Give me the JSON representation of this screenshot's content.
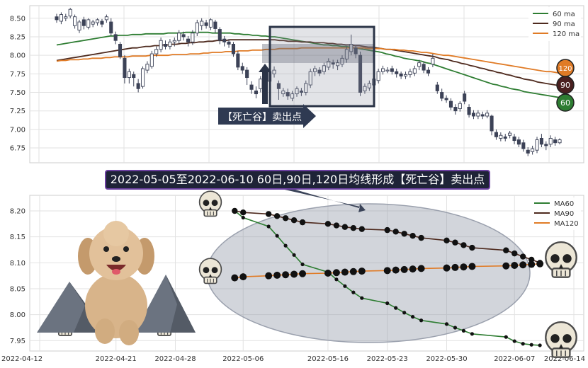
{
  "title": "2022-05-05至2022-06-10 60日,90日,120日均线形成【死亡谷】卖出点",
  "arrow_label": "【死亡谷】卖出点",
  "badges": [
    "120",
    "90",
    "60"
  ],
  "colors": {
    "ma60": "#2e7d32",
    "ma90": "#4e2a1e",
    "ma120": "#e07b26",
    "candle_up": "#ffffff",
    "candle_down": "#3c4257",
    "highlight": "#2b3447"
  },
  "chart_data": [
    {
      "type": "candlestick",
      "ylim": [
        6.55,
        8.67
      ],
      "yticks": [
        6.75,
        7.0,
        7.25,
        7.5,
        7.75,
        8.0,
        8.25,
        8.5
      ],
      "grid": true,
      "legend_position": "top-right",
      "legend": [
        "60 ma",
        "90 ma",
        "120 ma"
      ],
      "candles": [
        [
          8.52,
          8.48,
          8.56,
          8.44
        ],
        [
          8.46,
          8.55,
          8.58,
          8.42
        ],
        [
          8.5,
          8.52,
          8.56,
          8.46
        ],
        [
          8.53,
          8.62,
          8.64,
          8.5
        ],
        [
          8.4,
          8.52,
          8.55,
          8.36
        ],
        [
          8.34,
          8.45,
          8.48,
          8.3
        ],
        [
          8.48,
          8.4,
          8.52,
          8.35
        ],
        [
          8.38,
          8.48,
          8.5,
          8.35
        ],
        [
          8.42,
          8.45,
          8.48,
          8.38
        ],
        [
          8.44,
          8.48,
          8.5,
          8.4
        ],
        [
          8.46,
          8.42,
          8.49,
          8.38
        ],
        [
          8.48,
          8.52,
          8.55,
          8.44
        ],
        [
          8.45,
          8.3,
          8.5,
          8.26
        ],
        [
          8.28,
          8.2,
          8.32,
          8.15
        ],
        [
          8.15,
          7.98,
          8.18,
          7.95
        ],
        [
          7.96,
          7.7,
          8.0,
          7.62
        ],
        [
          7.7,
          7.78,
          7.82,
          7.62
        ],
        [
          7.74,
          7.7,
          7.78,
          7.58
        ],
        [
          7.62,
          7.55,
          7.68,
          7.5
        ],
        [
          7.58,
          7.82,
          7.85,
          7.55
        ],
        [
          7.8,
          7.88,
          7.92,
          7.76
        ],
        [
          7.85,
          8.02,
          8.06,
          7.82
        ],
        [
          8.02,
          8.08,
          8.12,
          7.98
        ],
        [
          8.08,
          8.2,
          8.24,
          8.04
        ],
        [
          8.15,
          8.12,
          8.2,
          8.08
        ],
        [
          8.12,
          8.18,
          8.22,
          8.08
        ],
        [
          8.18,
          8.2,
          8.24,
          8.12
        ],
        [
          8.2,
          8.3,
          8.34,
          8.16
        ],
        [
          8.28,
          8.25,
          8.32,
          8.2
        ],
        [
          8.22,
          8.18,
          8.26,
          8.12
        ],
        [
          8.18,
          8.3,
          8.34,
          8.14
        ],
        [
          8.3,
          8.44,
          8.48,
          8.26
        ],
        [
          8.4,
          8.46,
          8.5,
          8.34
        ],
        [
          8.44,
          8.4,
          8.48,
          8.36
        ],
        [
          8.38,
          8.48,
          8.5,
          8.34
        ],
        [
          8.45,
          8.36,
          8.48,
          8.3
        ],
        [
          8.35,
          8.2,
          8.38,
          8.15
        ],
        [
          8.22,
          8.18,
          8.26,
          8.12
        ],
        [
          8.18,
          8.15,
          8.22,
          8.1
        ],
        [
          8.15,
          8.02,
          8.18,
          7.98
        ],
        [
          8.02,
          7.84,
          8.06,
          7.8
        ],
        [
          7.85,
          7.8,
          7.9,
          7.75
        ],
        [
          7.8,
          7.7,
          7.84,
          7.6
        ],
        [
          7.6,
          7.54,
          7.65,
          7.48
        ],
        [
          7.52,
          7.48,
          7.58,
          7.42
        ],
        [
          7.55,
          7.68,
          7.72,
          7.5
        ],
        [
          7.7,
          7.62,
          7.74,
          7.56
        ],
        [
          7.65,
          7.78,
          7.8,
          7.6
        ],
        [
          7.75,
          7.8,
          7.85,
          7.7
        ],
        [
          7.62,
          7.55,
          7.66,
          7.4
        ],
        [
          7.48,
          7.52,
          7.56,
          7.44
        ],
        [
          7.5,
          7.45,
          7.55,
          7.4
        ],
        [
          7.42,
          7.48,
          7.52,
          7.38
        ],
        [
          7.48,
          7.55,
          7.58,
          7.44
        ],
        [
          7.52,
          7.5,
          7.56,
          7.45
        ],
        [
          7.5,
          7.62,
          7.66,
          7.46
        ],
        [
          7.6,
          7.78,
          7.82,
          7.56
        ],
        [
          7.78,
          7.82,
          7.86,
          7.72
        ],
        [
          7.8,
          7.76,
          7.84,
          7.72
        ],
        [
          7.78,
          7.86,
          7.9,
          7.74
        ],
        [
          7.84,
          7.92,
          7.96,
          7.8
        ],
        [
          7.9,
          7.88,
          7.94,
          7.82
        ],
        [
          7.86,
          7.9,
          7.94,
          7.8
        ],
        [
          7.88,
          7.96,
          8.0,
          7.84
        ],
        [
          7.95,
          8.08,
          8.12,
          7.9
        ],
        [
          8.05,
          8.15,
          8.28,
          8.0
        ],
        [
          8.1,
          8.02,
          8.14,
          7.96
        ],
        [
          8.0,
          7.5,
          8.05,
          7.45
        ],
        [
          7.52,
          7.58,
          7.62,
          7.48
        ],
        [
          7.56,
          7.62,
          7.66,
          7.52
        ],
        [
          7.6,
          7.68,
          7.72,
          7.55
        ],
        [
          7.66,
          7.78,
          7.82,
          7.62
        ],
        [
          7.78,
          7.82,
          7.86,
          7.74
        ],
        [
          7.8,
          7.8,
          7.84,
          7.76
        ],
        [
          7.82,
          7.78,
          7.86,
          7.74
        ],
        [
          7.78,
          7.75,
          7.82,
          7.7
        ],
        [
          7.75,
          7.72,
          7.78,
          7.68
        ],
        [
          7.72,
          7.74,
          7.78,
          7.68
        ],
        [
          7.74,
          7.78,
          7.82,
          7.7
        ],
        [
          7.76,
          7.82,
          7.86,
          7.72
        ],
        [
          7.85,
          7.9,
          7.94,
          7.8
        ],
        [
          7.88,
          7.8,
          7.92,
          7.76
        ],
        [
          7.8,
          7.76,
          7.84,
          7.72
        ],
        [
          7.88,
          7.96,
          8.02,
          7.84
        ],
        [
          7.6,
          7.52,
          7.64,
          7.48
        ],
        [
          7.5,
          7.42,
          7.55,
          7.38
        ],
        [
          7.42,
          7.4,
          7.46,
          7.36
        ],
        [
          7.38,
          7.3,
          7.42,
          7.26
        ],
        [
          7.3,
          7.25,
          7.34,
          7.2
        ],
        [
          7.28,
          7.35,
          7.38,
          7.24
        ],
        [
          7.48,
          7.38,
          7.52,
          7.34
        ],
        [
          7.3,
          7.2,
          7.34,
          7.16
        ],
        [
          7.22,
          7.18,
          7.26,
          7.14
        ],
        [
          7.18,
          7.22,
          7.26,
          7.14
        ],
        [
          7.2,
          7.18,
          7.24,
          7.14
        ],
        [
          7.18,
          7.22,
          7.26,
          7.15
        ],
        [
          7.18,
          6.98,
          7.2,
          6.92
        ],
        [
          6.96,
          6.9,
          7.0,
          6.86
        ],
        [
          6.88,
          6.92,
          6.96,
          6.84
        ],
        [
          6.9,
          6.88,
          6.94,
          6.84
        ],
        [
          6.92,
          6.95,
          6.98,
          6.88
        ],
        [
          6.9,
          6.85,
          6.94,
          6.8
        ],
        [
          6.86,
          6.8,
          6.9,
          6.76
        ],
        [
          6.82,
          6.74,
          6.86,
          6.7
        ],
        [
          6.72,
          6.68,
          6.76,
          6.64
        ],
        [
          6.7,
          6.74,
          6.78,
          6.66
        ],
        [
          6.72,
          6.86,
          6.9,
          6.68
        ],
        [
          6.88,
          6.8,
          6.94,
          6.76
        ],
        [
          6.8,
          6.78,
          6.84,
          6.72
        ],
        [
          6.8,
          6.88,
          6.92,
          6.76
        ],
        [
          6.86,
          6.82,
          6.9,
          6.78
        ],
        [
          6.82,
          6.86,
          6.88,
          6.8
        ]
      ],
      "ma60": [
        8.14,
        8.15,
        8.16,
        8.17,
        8.18,
        8.19,
        8.2,
        8.21,
        8.22,
        8.23,
        8.24,
        8.25,
        8.26,
        8.26,
        8.27,
        8.27,
        8.27,
        8.28,
        8.28,
        8.28,
        8.29,
        8.29,
        8.29,
        8.29,
        8.29,
        8.3,
        8.3,
        8.3,
        8.3,
        8.31,
        8.31,
        8.31,
        8.31,
        8.31,
        8.31,
        8.3,
        8.3,
        8.3,
        8.3,
        8.3,
        8.29,
        8.29,
        8.28,
        8.28,
        8.27,
        8.27,
        8.26,
        8.26,
        8.25,
        8.25,
        8.24,
        8.23,
        8.22,
        8.21,
        8.2,
        8.19,
        8.18,
        8.17,
        8.16,
        8.15,
        8.14,
        8.14,
        8.13,
        8.13,
        8.12,
        8.12,
        8.11,
        8.1,
        8.09,
        8.08,
        8.07,
        8.06,
        8.05,
        8.04,
        8.02,
        8.01,
        7.99,
        7.98,
        7.96,
        7.95,
        7.94,
        7.93,
        7.92,
        7.9,
        7.89,
        7.87,
        7.85,
        7.83,
        7.81,
        7.79,
        7.77,
        7.75,
        7.73,
        7.71,
        7.69,
        7.67,
        7.65,
        7.63,
        7.61,
        7.6,
        7.58,
        7.57,
        7.55,
        7.54,
        7.53,
        7.51,
        7.5,
        7.49,
        7.48,
        7.47,
        7.46,
        7.45,
        7.44,
        7.43
      ],
      "ma90": [
        7.93,
        7.94,
        7.95,
        7.96,
        7.97,
        7.98,
        7.99,
        8.0,
        8.01,
        8.02,
        8.03,
        8.04,
        8.05,
        8.06,
        8.07,
        8.08,
        8.09,
        8.1,
        8.1,
        8.11,
        8.12,
        8.12,
        8.13,
        8.13,
        8.14,
        8.14,
        8.15,
        8.15,
        8.16,
        8.16,
        8.17,
        8.17,
        8.18,
        8.18,
        8.19,
        8.19,
        8.2,
        8.2,
        8.2,
        8.21,
        8.21,
        8.21,
        8.21,
        8.21,
        8.21,
        8.21,
        8.21,
        8.21,
        8.21,
        8.21,
        8.2,
        8.2,
        8.19,
        8.19,
        8.19,
        8.18,
        8.18,
        8.18,
        8.17,
        8.17,
        8.17,
        8.16,
        8.16,
        8.15,
        8.15,
        8.14,
        8.14,
        8.13,
        8.13,
        8.12,
        8.11,
        8.11,
        8.1,
        8.09,
        8.08,
        8.08,
        8.07,
        8.06,
        8.05,
        8.04,
        8.03,
        8.02,
        8.01,
        8.0,
        7.99,
        7.98,
        7.96,
        7.95,
        7.94,
        7.92,
        7.91,
        7.89,
        7.88,
        7.86,
        7.85,
        7.83,
        7.82,
        7.8,
        7.79,
        7.77,
        7.76,
        7.74,
        7.73,
        7.71,
        7.7,
        7.68,
        7.67,
        7.66,
        7.64,
        7.63,
        7.62,
        7.61,
        7.6,
        7.59
      ],
      "ma120": [
        7.92,
        7.93,
        7.93,
        7.94,
        7.94,
        7.94,
        7.95,
        7.95,
        7.96,
        7.96,
        7.96,
        7.97,
        7.97,
        7.98,
        7.98,
        7.98,
        7.98,
        7.99,
        7.99,
        7.99,
        7.99,
        8.0,
        8.0,
        8.0,
        8.0,
        8.0,
        8.01,
        8.01,
        8.01,
        8.01,
        8.02,
        8.02,
        8.02,
        8.03,
        8.03,
        8.04,
        8.04,
        8.04,
        8.05,
        8.05,
        8.05,
        8.06,
        8.06,
        8.06,
        8.07,
        8.07,
        8.07,
        8.08,
        8.08,
        8.08,
        8.09,
        8.09,
        8.09,
        8.09,
        8.09,
        8.1,
        8.1,
        8.1,
        8.1,
        8.1,
        8.1,
        8.1,
        8.1,
        8.1,
        8.1,
        8.1,
        8.1,
        8.1,
        8.1,
        8.1,
        8.09,
        8.09,
        8.09,
        8.09,
        8.08,
        8.08,
        8.08,
        8.07,
        8.07,
        8.06,
        8.06,
        8.05,
        8.04,
        8.04,
        8.03,
        8.02,
        8.01,
        8.0,
        8.0,
        7.99,
        7.98,
        7.97,
        7.96,
        7.95,
        7.94,
        7.93,
        7.92,
        7.91,
        7.9,
        7.89,
        7.88,
        7.87,
        7.86,
        7.85,
        7.84,
        7.83,
        7.82,
        7.81,
        7.8,
        7.79,
        7.78,
        7.78,
        7.77,
        7.76
      ]
    },
    {
      "type": "line",
      "ylim": [
        7.93,
        8.23
      ],
      "yticks": [
        7.95,
        8.0,
        8.05,
        8.1,
        8.15,
        8.2
      ],
      "xlim": [
        "2022-04-12",
        "2022-06-15"
      ],
      "xticks": [
        "2022-04-12",
        "2022-04-21",
        "2022-04-28",
        "2022-05-06",
        "2022-05-16",
        "2022-05-23",
        "2022-05-30",
        "2022-06-07",
        "2022-06-14"
      ],
      "grid": true,
      "legend_position": "top-right",
      "dates": [
        "2022-05-05",
        "2022-05-06",
        "2022-05-09",
        "2022-05-10",
        "2022-05-11",
        "2022-05-12",
        "2022-05-13",
        "2022-05-16",
        "2022-05-17",
        "2022-05-18",
        "2022-05-19",
        "2022-05-20",
        "2022-05-23",
        "2022-05-24",
        "2022-05-25",
        "2022-05-26",
        "2022-05-27",
        "2022-05-30",
        "2022-05-31",
        "2022-06-01",
        "2022-06-02",
        "2022-06-06",
        "2022-06-07",
        "2022-06-08",
        "2022-06-09",
        "2022-06-10"
      ],
      "series": [
        {
          "name": "MA60",
          "values": [
            8.2,
            8.187,
            8.17,
            8.152,
            8.133,
            8.115,
            8.097,
            8.082,
            8.068,
            8.055,
            8.043,
            8.032,
            8.022,
            8.013,
            8.004,
            7.996,
            7.989,
            7.982,
            7.975,
            7.969,
            7.963,
            7.957,
            7.949,
            7.944,
            7.942,
            7.941
          ]
        },
        {
          "name": "MA90",
          "values": [
            8.2,
            8.197,
            8.194,
            8.19,
            8.186,
            8.182,
            8.178,
            8.175,
            8.172,
            8.169,
            8.167,
            8.165,
            8.163,
            8.16,
            8.156,
            8.152,
            8.148,
            8.143,
            8.139,
            8.134,
            8.129,
            8.124,
            8.118,
            8.112,
            8.106,
            8.1
          ]
        },
        {
          "name": "MA120",
          "values": [
            8.071,
            8.073,
            8.075,
            8.076,
            8.077,
            8.078,
            8.079,
            8.08,
            8.081,
            8.082,
            8.083,
            8.084,
            8.085,
            8.086,
            8.087,
            8.088,
            8.089,
            8.09,
            8.091,
            8.092,
            8.093,
            8.094,
            8.095,
            8.096,
            8.097,
            8.098
          ]
        }
      ]
    }
  ]
}
